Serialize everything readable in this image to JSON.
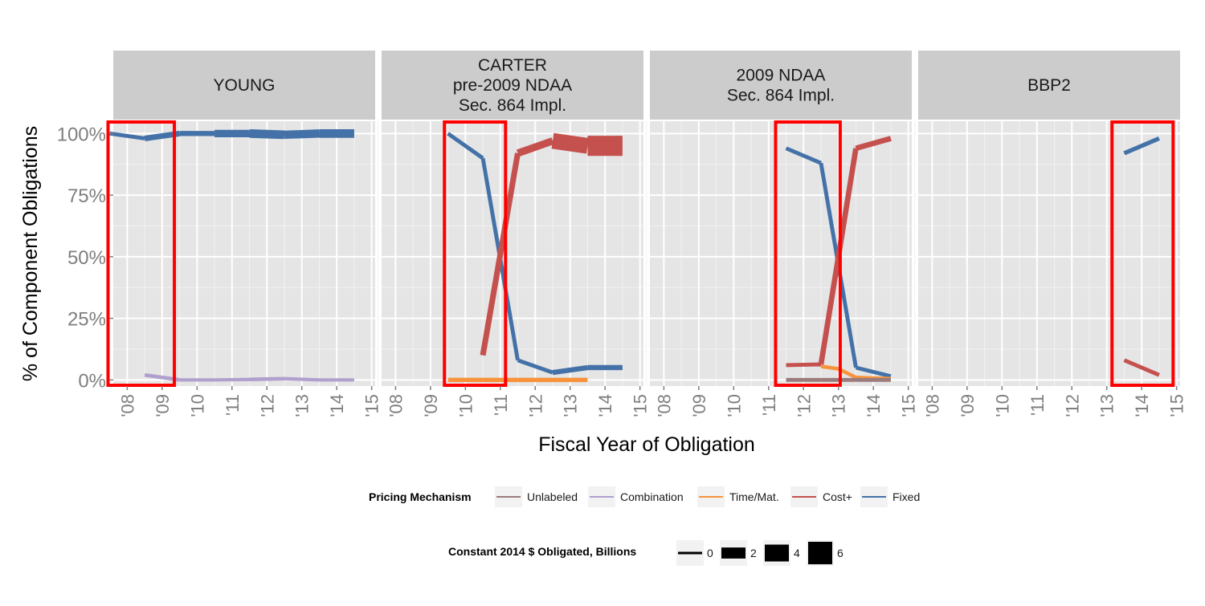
{
  "chart_data": {
    "type": "line",
    "title": "",
    "xlabel": "Fiscal Year of Obligation",
    "ylabel": "% of Component Obligations",
    "xlim": [
      2007.6,
      2015.1
    ],
    "ylim": [
      -0.025,
      1.05
    ],
    "x_ticks": [
      2008,
      2009,
      2010,
      2011,
      2012,
      2013,
      2014,
      2015
    ],
    "x_tick_labels": [
      "'08",
      "'09",
      "'10",
      "'11",
      "'12",
      "'13",
      "'14",
      "'15"
    ],
    "y_ticks": [
      0,
      0.25,
      0.5,
      0.75,
      1.0
    ],
    "y_tick_labels": [
      "0%",
      "25%",
      "50%",
      "75%",
      "100%"
    ],
    "grid": true,
    "colors": {
      "Unlabeled": "#9B7B7B",
      "Combination": "#AFA0CE",
      "Time/Mat.": "#F9933B",
      "Cost+": "#C5514E",
      "Fixed": "#4472A8",
      "highlight": "#FF0000",
      "panel_bg": "#E5E5E5",
      "strip_bg": "#CCCCCC"
    },
    "facets": [
      {
        "label": [
          "YOUNG"
        ],
        "highlight_x": [
          2007.45,
          2009.35
        ],
        "series": [
          {
            "name": "Fixed",
            "points": [
              [
                2007.5,
                1.0,
                0.3
              ],
              [
                2008.5,
                0.98,
                0.4
              ],
              [
                2009.5,
                1.0,
                1.0
              ],
              [
                2010.5,
                1.0,
                0.8
              ],
              [
                2011.5,
                1.0,
                1.6
              ],
              [
                2012.5,
                0.995,
                2.0
              ],
              [
                2013.5,
                1.0,
                1.9
              ],
              [
                2014.5,
                1.0,
                2.0
              ]
            ]
          },
          {
            "name": "Combination",
            "points": [
              [
                2008.5,
                0.02,
                0.2
              ],
              [
                2009.5,
                0.0,
                0.3
              ],
              [
                2010.5,
                0.0,
                0.2
              ],
              [
                2011.5,
                0.002,
                0.2
              ],
              [
                2012.5,
                0.005,
                0.3
              ],
              [
                2013.5,
                0.0,
                0.2
              ],
              [
                2014.5,
                0.0,
                0.2
              ]
            ]
          }
        ]
      },
      {
        "label": [
          "CARTER",
          "pre-2009 NDAA",
          "Sec. 864 Impl."
        ],
        "highlight_x": [
          2009.4,
          2011.15
        ],
        "series": [
          {
            "name": "Fixed",
            "points": [
              [
                2009.5,
                1.0,
                0.4
              ],
              [
                2010.5,
                0.9,
                0.4
              ],
              [
                2011.5,
                0.08,
                0.4
              ],
              [
                2012.5,
                0.03,
                0.4
              ],
              [
                2013.5,
                0.05,
                0.8
              ],
              [
                2014.5,
                0.05,
                0.8
              ]
            ]
          },
          {
            "name": "Cost+",
            "points": [
              [
                2010.5,
                0.1,
                0.3
              ],
              [
                2011.5,
                0.92,
                1.0
              ],
              [
                2012.5,
                0.97,
                1.6
              ],
              [
                2013.5,
                0.95,
                4.5
              ],
              [
                2014.5,
                0.95,
                6.0
              ]
            ]
          },
          {
            "name": "Time/Mat.",
            "points": [
              [
                2009.5,
                0.0,
                0.5
              ],
              [
                2010.5,
                0.0,
                0.5
              ],
              [
                2011.5,
                0.0,
                0.5
              ],
              [
                2012.5,
                0.0,
                0.5
              ],
              [
                2013.5,
                0.0,
                0.5
              ]
            ]
          }
        ]
      },
      {
        "label": [
          "2009 NDAA",
          "Sec. 864 Impl."
        ],
        "highlight_x": [
          2011.2,
          2013.05
        ],
        "series": [
          {
            "name": "Fixed",
            "points": [
              [
                2011.5,
                0.94,
                0.4
              ],
              [
                2012.5,
                0.88,
                0.4
              ],
              [
                2013.5,
                0.05,
                0.4
              ],
              [
                2014.5,
                0.015,
                0.4
              ]
            ]
          },
          {
            "name": "Cost+",
            "points": [
              [
                2011.5,
                0.06,
                0.4
              ],
              [
                2012.5,
                0.063,
                0.4
              ],
              [
                2013.5,
                0.94,
                0.9
              ],
              [
                2014.5,
                0.98,
                0.9
              ]
            ]
          },
          {
            "name": "Time/Mat.",
            "points": [
              [
                2012.5,
                0.055,
                0.3
              ],
              [
                2013.0,
                0.045,
                0.3
              ],
              [
                2013.5,
                0.01,
                0.3
              ],
              [
                2014.5,
                0.005,
                0.3
              ]
            ]
          },
          {
            "name": "Unlabeled",
            "points": [
              [
                2011.5,
                0.0,
                0.4
              ],
              [
                2012.5,
                0.0,
                0.4
              ],
              [
                2013.5,
                0.0,
                0.4
              ],
              [
                2014.5,
                0.0,
                0.4
              ]
            ]
          }
        ]
      },
      {
        "label": [
          "BBP2"
        ],
        "highlight_x": [
          2013.15,
          2014.9
        ],
        "series": [
          {
            "name": "Fixed",
            "points": [
              [
                2013.5,
                0.92,
                0.5
              ],
              [
                2014.5,
                0.98,
                0.5
              ]
            ]
          },
          {
            "name": "Cost+",
            "points": [
              [
                2013.5,
                0.08,
                0.4
              ],
              [
                2014.5,
                0.02,
                0.4
              ]
            ]
          }
        ]
      }
    ],
    "legend_color": {
      "title": "Pricing Mechanism",
      "placement": "bottom",
      "entries": [
        "Unlabeled",
        "Combination",
        "Time/Mat.",
        "Cost+",
        "Fixed"
      ]
    },
    "legend_size": {
      "title": "Constant 2014 $ Obligated, Billions",
      "placement": "bottom",
      "entries": [
        {
          "label": "0",
          "value": 0
        },
        {
          "label": "2",
          "value": 2
        },
        {
          "label": "4",
          "value": 4
        },
        {
          "label": "6",
          "value": 6
        }
      ]
    }
  }
}
